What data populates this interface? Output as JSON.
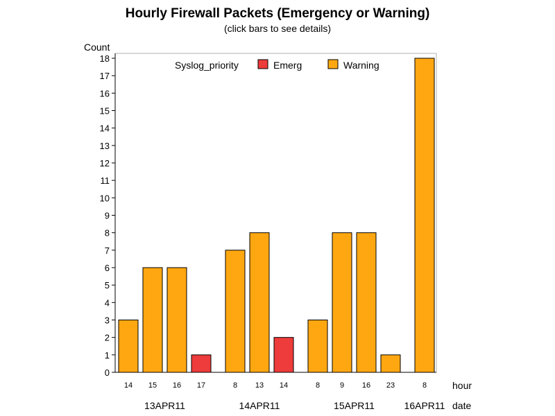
{
  "chart_data": {
    "type": "bar",
    "title": "Hourly Firewall Packets (Emergency or Warning)",
    "subtitle": "(click bars to see details)",
    "ylabel": "Count",
    "ylim": [
      0,
      18
    ],
    "yticks": [
      0,
      1,
      2,
      3,
      4,
      5,
      6,
      7,
      8,
      9,
      10,
      11,
      12,
      13,
      14,
      15,
      16,
      17,
      18
    ],
    "xlabel_inner": "hour",
    "xlabel_outer": "date",
    "legend": {
      "title": "Syslog_priority",
      "position": "top",
      "entries": [
        {
          "name": "Emerg",
          "color": "#ee3b3b"
        },
        {
          "name": "Warning",
          "color": "#ffa711"
        }
      ]
    },
    "groups": [
      {
        "date": "13APR11",
        "bars": [
          {
            "hour": "14",
            "value": 3,
            "priority": "Warning"
          },
          {
            "hour": "15",
            "value": 6,
            "priority": "Warning"
          },
          {
            "hour": "16",
            "value": 6,
            "priority": "Warning"
          },
          {
            "hour": "17",
            "value": 1,
            "priority": "Emerg"
          }
        ]
      },
      {
        "date": "14APR11",
        "bars": [
          {
            "hour": "8",
            "value": 7,
            "priority": "Warning"
          },
          {
            "hour": "13",
            "value": 8,
            "priority": "Warning"
          },
          {
            "hour": "14",
            "value": 2,
            "priority": "Emerg"
          }
        ]
      },
      {
        "date": "15APR11",
        "bars": [
          {
            "hour": "8",
            "value": 3,
            "priority": "Warning"
          },
          {
            "hour": "9",
            "value": 8,
            "priority": "Warning"
          },
          {
            "hour": "16",
            "value": 8,
            "priority": "Warning"
          },
          {
            "hour": "23",
            "value": 1,
            "priority": "Warning"
          }
        ]
      },
      {
        "date": "16APR11",
        "bars": [
          {
            "hour": "8",
            "value": 18,
            "priority": "Warning"
          }
        ]
      }
    ]
  }
}
